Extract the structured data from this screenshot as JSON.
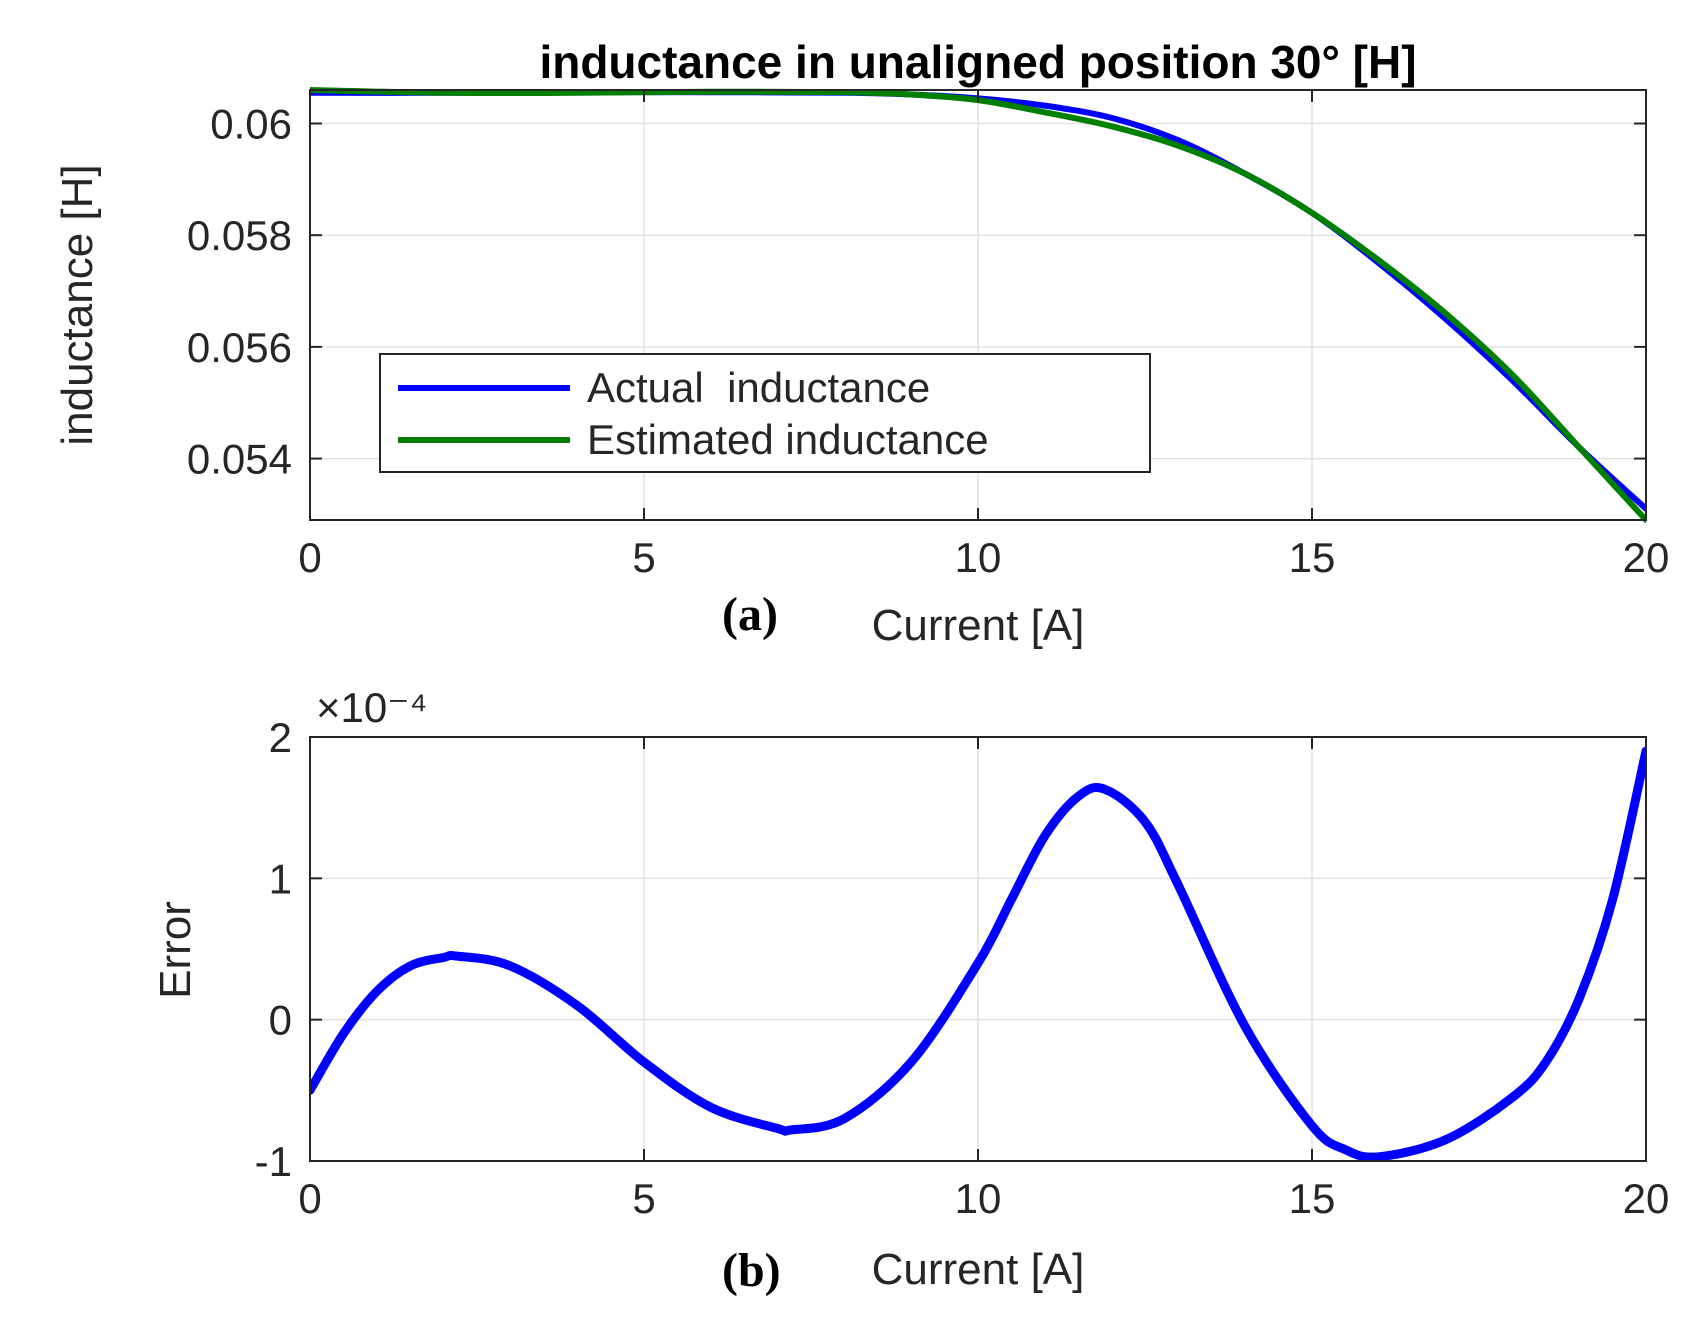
{
  "chart_data": [
    {
      "panel_label": "(a)",
      "type": "line",
      "title": "inductance in unaligned position 30° [H]",
      "xlabel": "Current [A]",
      "ylabel": "inductance [H]",
      "xlim": [
        0,
        20
      ],
      "ylim": [
        0.0529,
        0.0606
      ],
      "xticks": [
        0,
        5,
        10,
        15,
        20
      ],
      "xtick_labels": [
        "0",
        "5",
        "10",
        "15",
        "20"
      ],
      "yticks": [
        0.054,
        0.056,
        0.058,
        0.06
      ],
      "ytick_labels": [
        "0.054",
        "0.056",
        "0.058",
        "0.06"
      ],
      "grid": true,
      "legend_position": "lower-left",
      "series": [
        {
          "name": "Actual  inductance",
          "color": "#0000ff",
          "x": [
            0,
            2,
            4,
            6,
            8,
            9,
            10,
            11,
            12,
            13,
            14,
            15,
            16,
            17,
            18,
            19,
            20
          ],
          "y": [
            0.06055,
            0.06055,
            0.06056,
            0.06056,
            0.06055,
            0.06052,
            0.06045,
            0.06032,
            0.0601,
            0.0597,
            0.0591,
            0.0584,
            0.0575,
            0.0565,
            0.0554,
            0.0542,
            0.0531
          ]
        },
        {
          "name": "Estimated inductance",
          "color": "#007f00",
          "x": [
            0,
            2,
            4,
            6,
            8,
            9,
            10,
            11,
            12,
            13,
            14,
            15,
            16,
            17,
            18,
            19,
            20
          ],
          "y": [
            0.0606,
            0.06055,
            0.06055,
            0.06057,
            0.06056,
            0.06052,
            0.06042,
            0.0602,
            0.05995,
            0.0596,
            0.0591,
            0.0584,
            0.05755,
            0.0566,
            0.0555,
            0.0542,
            0.0529
          ]
        }
      ]
    },
    {
      "panel_label": "(b)",
      "type": "line",
      "title": "",
      "xlabel": "Current [A]",
      "ylabel": "Error",
      "exponent_label": "×10⁻⁴",
      "xlim": [
        0,
        20
      ],
      "ylim": [
        -1,
        2
      ],
      "xticks": [
        0,
        5,
        10,
        15,
        20
      ],
      "xtick_labels": [
        "0",
        "5",
        "10",
        "15",
        "20"
      ],
      "yticks": [
        -1,
        0,
        1,
        2
      ],
      "ytick_labels": [
        "-1",
        "0",
        "1",
        "2"
      ],
      "grid": true,
      "series": [
        {
          "name": "Error",
          "color": "#0000ff",
          "x": [
            0,
            0.5,
            1,
            1.5,
            2,
            2.2,
            3,
            4,
            5,
            6,
            7,
            7.2,
            8,
            9,
            10,
            10.5,
            11,
            11.5,
            11.9,
            12.5,
            13,
            14,
            15,
            15.5,
            16,
            17,
            18,
            18.5,
            19,
            19.5,
            20
          ],
          "y": [
            -0.5,
            -0.1,
            0.2,
            0.38,
            0.44,
            0.45,
            0.38,
            0.1,
            -0.3,
            -0.62,
            -0.77,
            -0.78,
            -0.7,
            -0.3,
            0.4,
            0.85,
            1.3,
            1.58,
            1.63,
            1.4,
            0.95,
            -0.05,
            -0.75,
            -0.92,
            -0.97,
            -0.85,
            -0.55,
            -0.3,
            0.15,
            0.85,
            1.9
          ]
        }
      ]
    }
  ]
}
